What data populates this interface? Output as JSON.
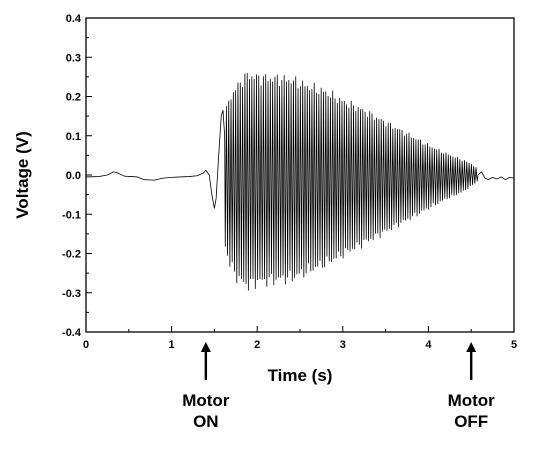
{
  "chart_data": {
    "type": "line",
    "xlabel": "Time (s)",
    "ylabel": "Voltage (V)",
    "xlim": [
      0,
      5
    ],
    "ylim": [
      -0.4,
      0.4
    ],
    "x_ticks": [
      {
        "value": 0,
        "label": "0"
      },
      {
        "value": 1,
        "label": "1"
      },
      {
        "value": 2,
        "label": "2"
      },
      {
        "value": 3,
        "label": "3"
      },
      {
        "value": 4,
        "label": "4"
      },
      {
        "value": 5,
        "label": "5"
      }
    ],
    "y_ticks": [
      {
        "value": 0.4,
        "label": "0.4"
      },
      {
        "value": 0.3,
        "label": "0.3"
      },
      {
        "value": 0.2,
        "label": "0.2"
      },
      {
        "value": 0.1,
        "label": "0.1"
      },
      {
        "value": 0.0,
        "label": "0.0"
      },
      {
        "value": -0.1,
        "label": "-0.1"
      },
      {
        "value": -0.2,
        "label": "-0.2"
      },
      {
        "value": -0.3,
        "label": "-0.3"
      },
      {
        "value": -0.4,
        "label": "-0.4"
      }
    ],
    "grid": false,
    "line_color": "#000000",
    "baseline_points": [
      [
        0.0,
        -0.005
      ],
      [
        0.15,
        -0.004
      ],
      [
        0.25,
        0.0
      ],
      [
        0.32,
        0.008
      ],
      [
        0.36,
        0.006
      ],
      [
        0.45,
        -0.003
      ],
      [
        0.6,
        -0.005
      ],
      [
        0.68,
        -0.012
      ],
      [
        0.8,
        -0.013
      ],
      [
        0.9,
        -0.008
      ],
      [
        1.0,
        -0.006
      ],
      [
        1.1,
        -0.005
      ],
      [
        1.2,
        -0.004
      ],
      [
        1.3,
        -0.002
      ],
      [
        1.37,
        0.005
      ],
      [
        1.4,
        0.012
      ],
      [
        1.44,
        0.0
      ],
      [
        1.47,
        -0.05
      ],
      [
        1.5,
        -0.085
      ],
      [
        1.52,
        -0.06
      ],
      [
        1.55,
        0.05
      ],
      [
        1.58,
        0.15
      ],
      [
        1.6,
        0.165
      ],
      [
        1.62,
        0.1
      ]
    ],
    "oscillation": {
      "start": 1.62,
      "end": 4.58,
      "cycle_period_s": 0.027,
      "envelope_top": [
        [
          1.62,
          0.16
        ],
        [
          1.68,
          0.21
        ],
        [
          1.75,
          0.235
        ],
        [
          1.85,
          0.265
        ],
        [
          1.9,
          0.272
        ],
        [
          2.0,
          0.265
        ],
        [
          2.2,
          0.262
        ],
        [
          2.4,
          0.258
        ],
        [
          2.6,
          0.24
        ],
        [
          2.8,
          0.225
        ],
        [
          3.0,
          0.2
        ],
        [
          3.2,
          0.18
        ],
        [
          3.4,
          0.155
        ],
        [
          3.6,
          0.13
        ],
        [
          3.8,
          0.105
        ],
        [
          4.0,
          0.08
        ],
        [
          4.2,
          0.058
        ],
        [
          4.4,
          0.04
        ],
        [
          4.5,
          0.03
        ],
        [
          4.58,
          0.015
        ]
      ],
      "envelope_bottom": [
        [
          1.62,
          -0.19
        ],
        [
          1.68,
          -0.24
        ],
        [
          1.75,
          -0.275
        ],
        [
          1.85,
          -0.295
        ],
        [
          1.9,
          -0.3
        ],
        [
          2.0,
          -0.29
        ],
        [
          2.2,
          -0.285
        ],
        [
          2.4,
          -0.28
        ],
        [
          2.6,
          -0.26
        ],
        [
          2.8,
          -0.24
        ],
        [
          3.0,
          -0.215
        ],
        [
          3.2,
          -0.19
        ],
        [
          3.4,
          -0.165
        ],
        [
          3.6,
          -0.14
        ],
        [
          3.8,
          -0.115
        ],
        [
          4.0,
          -0.09
        ],
        [
          4.2,
          -0.065
        ],
        [
          4.4,
          -0.045
        ],
        [
          4.5,
          -0.03
        ],
        [
          4.58,
          -0.015
        ]
      ]
    },
    "tail_points": [
      [
        4.58,
        0.0
      ],
      [
        4.62,
        0.008
      ],
      [
        4.66,
        -0.008
      ],
      [
        4.7,
        -0.012
      ],
      [
        4.75,
        -0.006
      ],
      [
        4.8,
        -0.01
      ],
      [
        4.85,
        -0.005
      ],
      [
        4.9,
        -0.012
      ],
      [
        4.95,
        -0.006
      ],
      [
        5.0,
        -0.008
      ]
    ],
    "annotations": [
      {
        "name": "motor-on",
        "x": 1.4,
        "lines": [
          "Motor",
          "ON"
        ]
      },
      {
        "name": "motor-off",
        "x": 4.5,
        "lines": [
          "Motor",
          "OFF"
        ]
      }
    ]
  }
}
